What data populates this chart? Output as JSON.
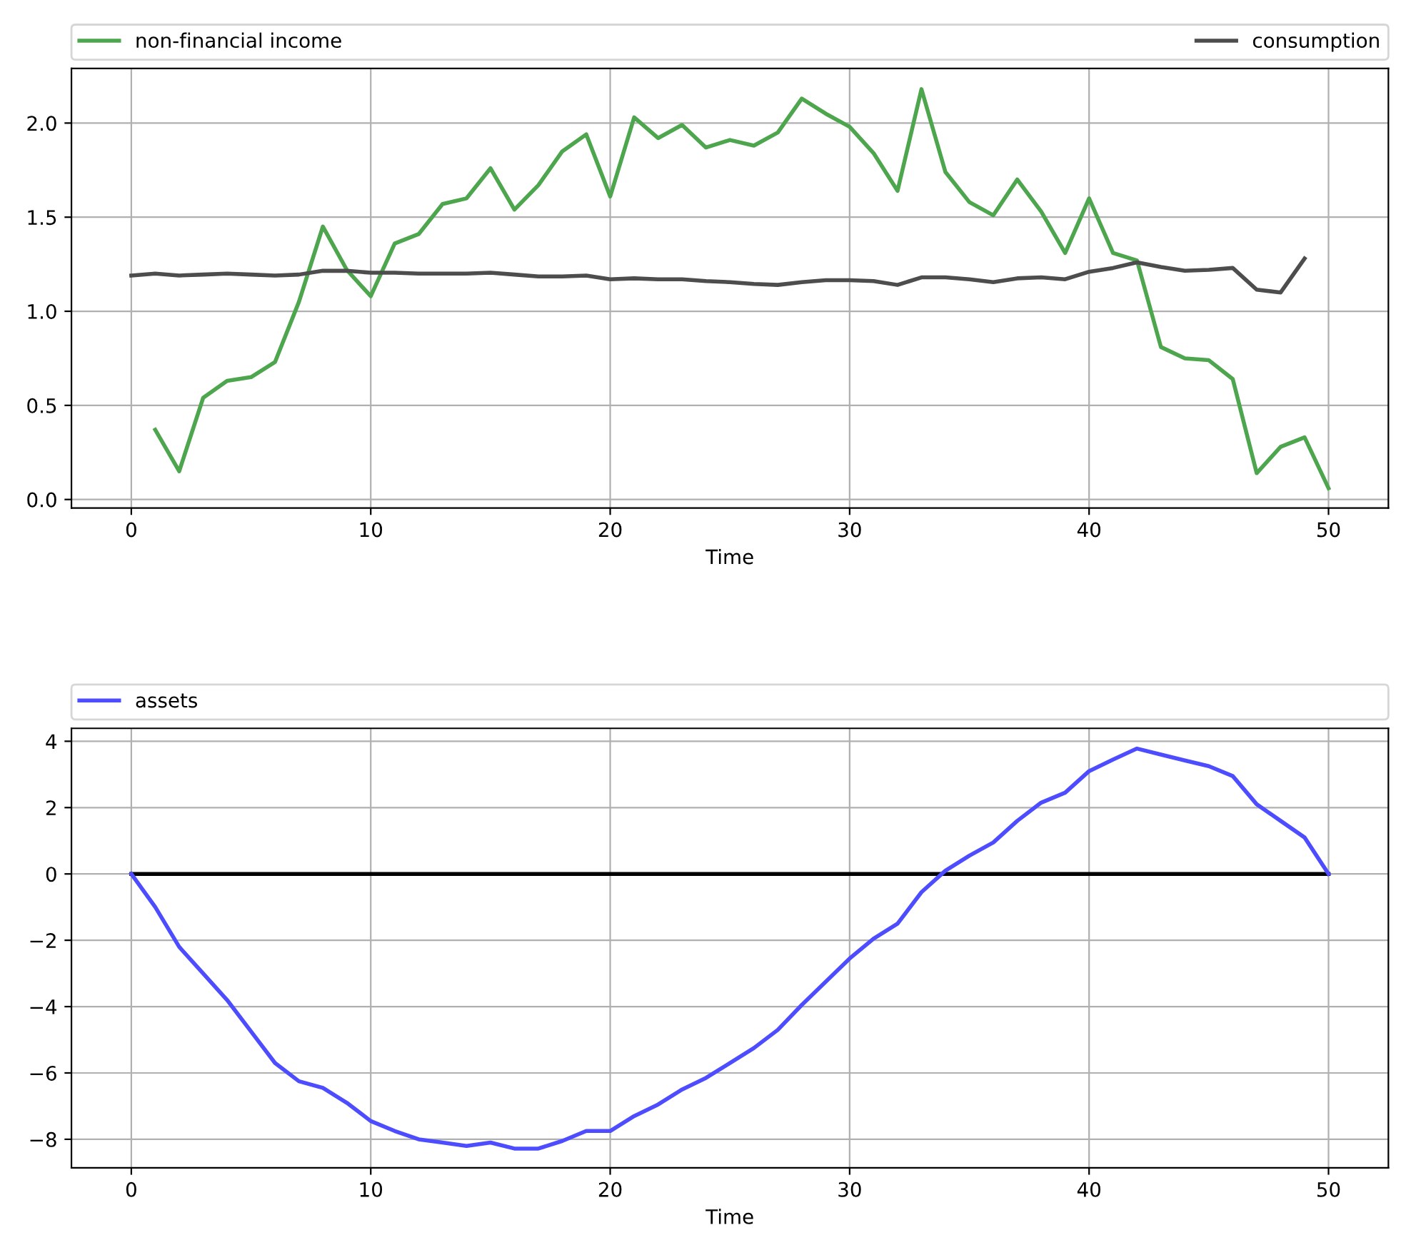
{
  "chart_data": [
    {
      "type": "line",
      "xlabel": "Time",
      "xlim": [
        -2.5,
        52.5
      ],
      "xticks": [
        0,
        10,
        20,
        30,
        40,
        50
      ],
      "ylim": [
        -0.045,
        2.29
      ],
      "yticks": [
        {
          "value": 0,
          "label": "0.0"
        },
        0.5,
        {
          "value": 1,
          "label": "1.0"
        },
        1.5,
        {
          "value": 2,
          "label": "2.0"
        }
      ],
      "grid": true,
      "legend": "top",
      "series": [
        {
          "name": "non-financial income",
          "color": "#4da64d",
          "x": [
            1,
            2,
            3,
            4,
            5,
            6,
            7,
            8,
            9,
            10,
            11,
            12,
            13,
            14,
            15,
            16,
            17,
            18,
            19,
            20,
            21,
            22,
            23,
            24,
            25,
            26,
            27,
            28,
            29,
            30,
            31,
            32,
            33,
            34,
            35,
            36,
            37,
            38,
            39,
            40,
            41,
            42,
            43,
            44,
            45,
            46,
            47,
            48,
            49,
            50
          ],
          "values": [
            0.37,
            0.15,
            0.54,
            0.63,
            0.65,
            0.73,
            1.05,
            1.45,
            1.22,
            1.08,
            1.36,
            1.41,
            1.57,
            1.6,
            1.76,
            1.54,
            1.67,
            1.85,
            1.94,
            1.61,
            2.03,
            1.92,
            1.99,
            1.87,
            1.91,
            1.88,
            1.95,
            2.13,
            2.05,
            1.98,
            1.84,
            1.64,
            2.18,
            1.74,
            1.58,
            1.51,
            1.7,
            1.53,
            1.31,
            1.6,
            1.31,
            1.27,
            0.81,
            0.75,
            0.74,
            0.64,
            0.14,
            0.28,
            0.33,
            0.06
          ]
        },
        {
          "name": "consumption",
          "color": "#4d4d4d",
          "x": [
            0,
            1,
            2,
            3,
            4,
            5,
            6,
            7,
            8,
            9,
            10,
            11,
            12,
            13,
            14,
            15,
            16,
            17,
            18,
            19,
            20,
            21,
            22,
            23,
            24,
            25,
            26,
            27,
            28,
            29,
            30,
            31,
            32,
            33,
            34,
            35,
            36,
            37,
            38,
            39,
            40,
            41,
            42,
            43,
            44,
            45,
            46,
            47,
            48,
            49
          ],
          "values": [
            1.19,
            1.2,
            1.19,
            1.195,
            1.2,
            1.195,
            1.19,
            1.195,
            1.215,
            1.215,
            1.205,
            1.205,
            1.2,
            1.2,
            1.2,
            1.205,
            1.195,
            1.185,
            1.185,
            1.19,
            1.17,
            1.175,
            1.17,
            1.17,
            1.16,
            1.155,
            1.145,
            1.14,
            1.155,
            1.165,
            1.165,
            1.16,
            1.14,
            1.18,
            1.18,
            1.17,
            1.155,
            1.175,
            1.18,
            1.17,
            1.21,
            1.23,
            1.26,
            1.235,
            1.215,
            1.22,
            1.23,
            1.115,
            1.1,
            1.28
          ]
        }
      ]
    },
    {
      "type": "line",
      "xlabel": "Time",
      "xlim": [
        -2.5,
        52.5
      ],
      "xticks": [
        0,
        10,
        20,
        30,
        40,
        50
      ],
      "ylim": [
        -8.86,
        4.39
      ],
      "yticks": [
        {
          "value": -8,
          "label": "−8"
        },
        {
          "value": -6,
          "label": "−6"
        },
        {
          "value": -4,
          "label": "−4"
        },
        {
          "value": -2,
          "label": "−2"
        },
        0,
        2,
        4
      ],
      "grid": true,
      "legend": "top",
      "series": [
        {
          "color": "#000000",
          "x": [
            0,
            50
          ],
          "values": [
            0,
            0
          ]
        },
        {
          "name": "assets",
          "color": "#4d4dff",
          "x": [
            0,
            1,
            2,
            3,
            4,
            5,
            6,
            7,
            8,
            9,
            10,
            11,
            12,
            13,
            14,
            15,
            16,
            17,
            18,
            19,
            20,
            21,
            22,
            23,
            24,
            25,
            26,
            27,
            28,
            29,
            30,
            31,
            32,
            33,
            34,
            35,
            36,
            37,
            38,
            39,
            40,
            41,
            42,
            43,
            44,
            45,
            46,
            47,
            48,
            49,
            50
          ],
          "values": [
            0,
            -1.0,
            -2.2,
            -3.0,
            -3.8,
            -4.75,
            -5.7,
            -6.25,
            -6.45,
            -6.9,
            -7.45,
            -7.75,
            -8.0,
            -8.1,
            -8.2,
            -8.1,
            -8.28,
            -8.28,
            -8.05,
            -7.75,
            -7.75,
            -7.3,
            -6.95,
            -6.5,
            -6.15,
            -5.7,
            -5.25,
            -4.7,
            -3.95,
            -3.25,
            -2.55,
            -1.95,
            -1.5,
            -0.55,
            0.1,
            0.55,
            0.95,
            1.6,
            2.15,
            2.45,
            3.1,
            3.45,
            3.78,
            3.6,
            3.42,
            3.25,
            2.95,
            2.1,
            1.6,
            1.1,
            0
          ]
        }
      ]
    }
  ]
}
